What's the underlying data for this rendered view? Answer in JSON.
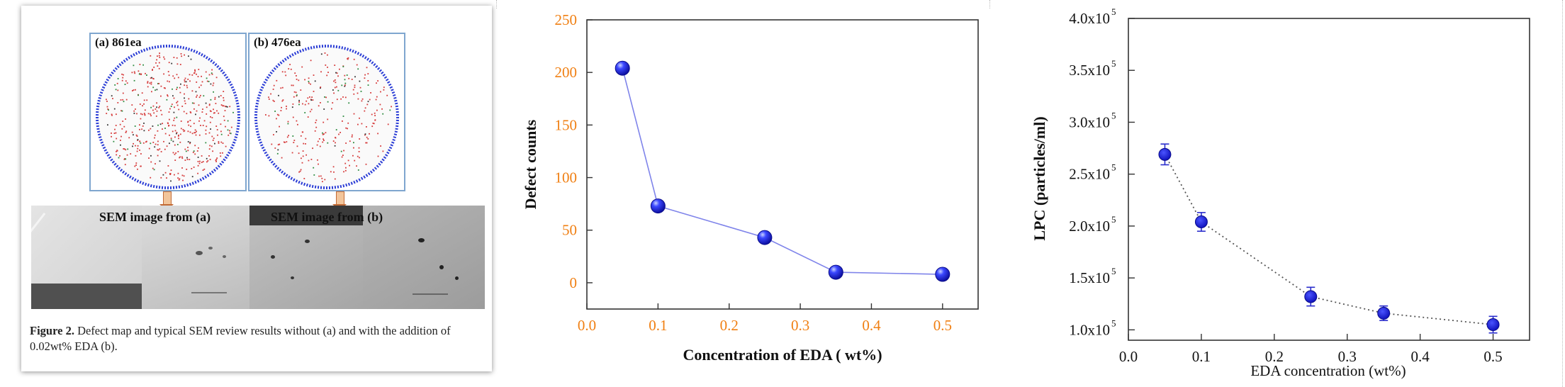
{
  "figure_a": {
    "wafer_a_label": "(a) 861ea",
    "wafer_b_label": "(b) 476ea",
    "sem_a_label": "SEM image from (a)",
    "sem_b_label": "SEM image from (b)",
    "caption_lead": "Figure 2.",
    "caption_text": "Defect map and typical SEM review results without (a) and with the addition of 0.02wt% EDA (b)."
  },
  "chart_data": [
    {
      "type": "line",
      "x": [
        0.05,
        0.1,
        0.25,
        0.35,
        0.5
      ],
      "y": [
        204,
        73,
        43,
        10,
        8
      ],
      "xlabel": "Concentration of EDA ( wt%)",
      "ylabel": "Defect counts",
      "xlim": [
        0.0,
        0.55
      ],
      "ylim": [
        -25,
        250
      ],
      "xticks": [
        "0.0",
        "0.1",
        "0.2",
        "0.3",
        "0.4",
        "0.5"
      ],
      "yticks": [
        "0",
        "50",
        "100",
        "150",
        "200",
        "250"
      ],
      "tick_color": "#f07f12",
      "marker_color": "#1e22e6",
      "line_color": "#7f84ea",
      "grid": false
    },
    {
      "type": "scatter",
      "x": [
        0.05,
        0.1,
        0.25,
        0.35,
        0.5
      ],
      "y": [
        269000,
        204000,
        132000,
        116000,
        105000
      ],
      "error": [
        10000,
        9000,
        9000,
        7000,
        8000
      ],
      "xlabel": "EDA concentration (wt%)",
      "ylabel": "LPC (particles/ml)",
      "xlim": [
        0.0,
        0.55
      ],
      "ylim": [
        90000,
        400000
      ],
      "xticks": [
        "0.0",
        "0.1",
        "0.2",
        "0.3",
        "0.4",
        "0.5"
      ],
      "yticks_mantissa": [
        "1.0x10",
        "1.5x10",
        "2.0x10",
        "2.5x10",
        "3.0x10",
        "3.5x10",
        "4.0x10"
      ],
      "ytick_exponent": "5",
      "marker_color": "#1e22e6",
      "line_color": "#555555",
      "line_style": "dotted",
      "grid": false
    }
  ]
}
